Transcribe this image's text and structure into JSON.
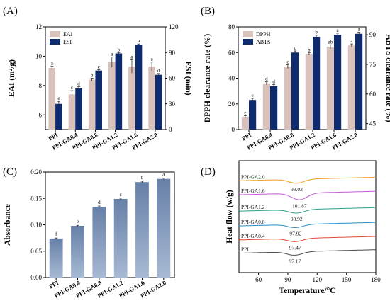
{
  "panels": [
    "(A)",
    "(B)",
    "(C)",
    "(D)"
  ],
  "chart_data": [
    {
      "type": "bar",
      "panel": "(A)",
      "categories": [
        "PPI",
        "PPI-GA0.4",
        "PPI-GA0.8",
        "PPI-GA1.2",
        "PPI-GA1.6",
        "PPI-GA2.0"
      ],
      "ylabel": "EAI (m²/g)",
      "y2label": "ESI (min)",
      "ylim": [
        5,
        12
      ],
      "yticks": [
        6,
        8,
        10,
        12
      ],
      "y2lim": [
        0,
        120
      ],
      "y2ticks": [
        0,
        30,
        60,
        90,
        120
      ],
      "legend_position": "top-left",
      "series": [
        {
          "name": "EAI",
          "axis": "left",
          "color": "#d9c2bc",
          "values": [
            9.2,
            7.4,
            8.4,
            9.6,
            9.3,
            9.3
          ],
          "errors": [
            0.12,
            0.25,
            0.1,
            0.35,
            0.45,
            0.3
          ],
          "letters": [
            "a",
            "c",
            "b",
            "a",
            "a",
            "a"
          ]
        },
        {
          "name": "ESI",
          "axis": "right",
          "color": "#0f2b70",
          "values": [
            30,
            48,
            69,
            89,
            99,
            64
          ],
          "errors": [
            3,
            2,
            1,
            1,
            1,
            1.5
          ],
          "letters": [
            "e",
            "d",
            "c",
            "b",
            "a",
            "d"
          ]
        }
      ]
    },
    {
      "type": "bar",
      "panel": "(B)",
      "categories": [
        "PPI",
        "PPI-GA0.4",
        "PPI-GA0.8",
        "PPI-GA1.2",
        "PPI-GA1.6",
        "PPI-GA2.0"
      ],
      "ylabel": "DPPH clearance rate (%)",
      "y2label": "ABTS clearance rate (%)",
      "ylim": [
        0,
        80
      ],
      "yticks": [
        0,
        20,
        40,
        60,
        80
      ],
      "y2lim": [
        42,
        94
      ],
      "y2ticks": [
        45,
        60,
        75,
        90
      ],
      "legend_position": "top-left",
      "series": [
        {
          "name": "DPPH",
          "axis": "left",
          "color": "#d9c2bc",
          "values": [
            10,
            36,
            49,
            59,
            64.5,
            65.5
          ],
          "errors": [
            0.8,
            1.2,
            1.5,
            1.0,
            1.5,
            1.2
          ],
          "letters": [
            "e",
            "d",
            "c",
            "b",
            "ab",
            "a"
          ]
        },
        {
          "name": "ABTS",
          "axis": "right",
          "color": "#0f2b70",
          "values": [
            57,
            64,
            81,
            89,
            90,
            90.5
          ],
          "errors": [
            0.8,
            0.8,
            0.8,
            0.8,
            0.8,
            0.8
          ],
          "letters": [
            "e",
            "d",
            "c",
            "b",
            "a",
            "a"
          ]
        }
      ]
    },
    {
      "type": "bar",
      "panel": "(C)",
      "categories": [
        "PPI",
        "PPI-GA0.4",
        "PPI-GA0.8",
        "PPI-GA1.2",
        "PPI-GA1.6",
        "PPI-GA2.0"
      ],
      "ylabel": "Absorbance",
      "ylim": [
        0,
        0.2
      ],
      "yticks": [
        0.0,
        0.05,
        0.1,
        0.15,
        0.2
      ],
      "values": [
        0.074,
        0.098,
        0.134,
        0.149,
        0.181,
        0.187
      ],
      "errors": [
        0.001,
        0.001,
        0.0015,
        0.0015,
        0.0015,
        0.0015
      ],
      "letters": [
        "f",
        "e",
        "d",
        "c",
        "b",
        "a"
      ],
      "color_gradient": [
        "#a7b9d3",
        "#6780a8"
      ]
    },
    {
      "type": "line",
      "panel": "(D)",
      "xlabel": "Temperature/°C",
      "ylabel": "Heat flow (w/g)",
      "xlim": [
        40,
        180
      ],
      "xticks": [
        60,
        90,
        120,
        150,
        180
      ],
      "series": [
        {
          "name": "PPI",
          "color": "#4a4a4a",
          "peak_label": "97.17",
          "baseline": 0.7,
          "dip": 0.22,
          "peak_x": 97.17
        },
        {
          "name": "PPI-GA0.4",
          "color": "#e24a33",
          "peak_label": "97.47",
          "baseline": 1.55,
          "dip": 0.2,
          "peak_x": 97.47
        },
        {
          "name": "PPI-GA0.8",
          "color": "#2b8cbe",
          "peak_label": "97.92",
          "baseline": 2.45,
          "dip": 0.2,
          "peak_x": 97.92
        },
        {
          "name": "PPI-GA1.2",
          "color": "#2ca089",
          "peak_label": "98.92",
          "baseline": 3.4,
          "dip": 0.22,
          "peak_x": 98.92
        },
        {
          "name": "PPI-GA1.6",
          "color": "#c45ad6",
          "peak_label": "101.87",
          "baseline": 4.45,
          "dip": 0.42,
          "peak_x": 101.87
        },
        {
          "name": "PPI-GA2.0",
          "color": "#e6a11a",
          "peak_label": "99.03",
          "baseline": 5.35,
          "dip": 0.25,
          "peak_x": 99.03
        }
      ]
    }
  ]
}
